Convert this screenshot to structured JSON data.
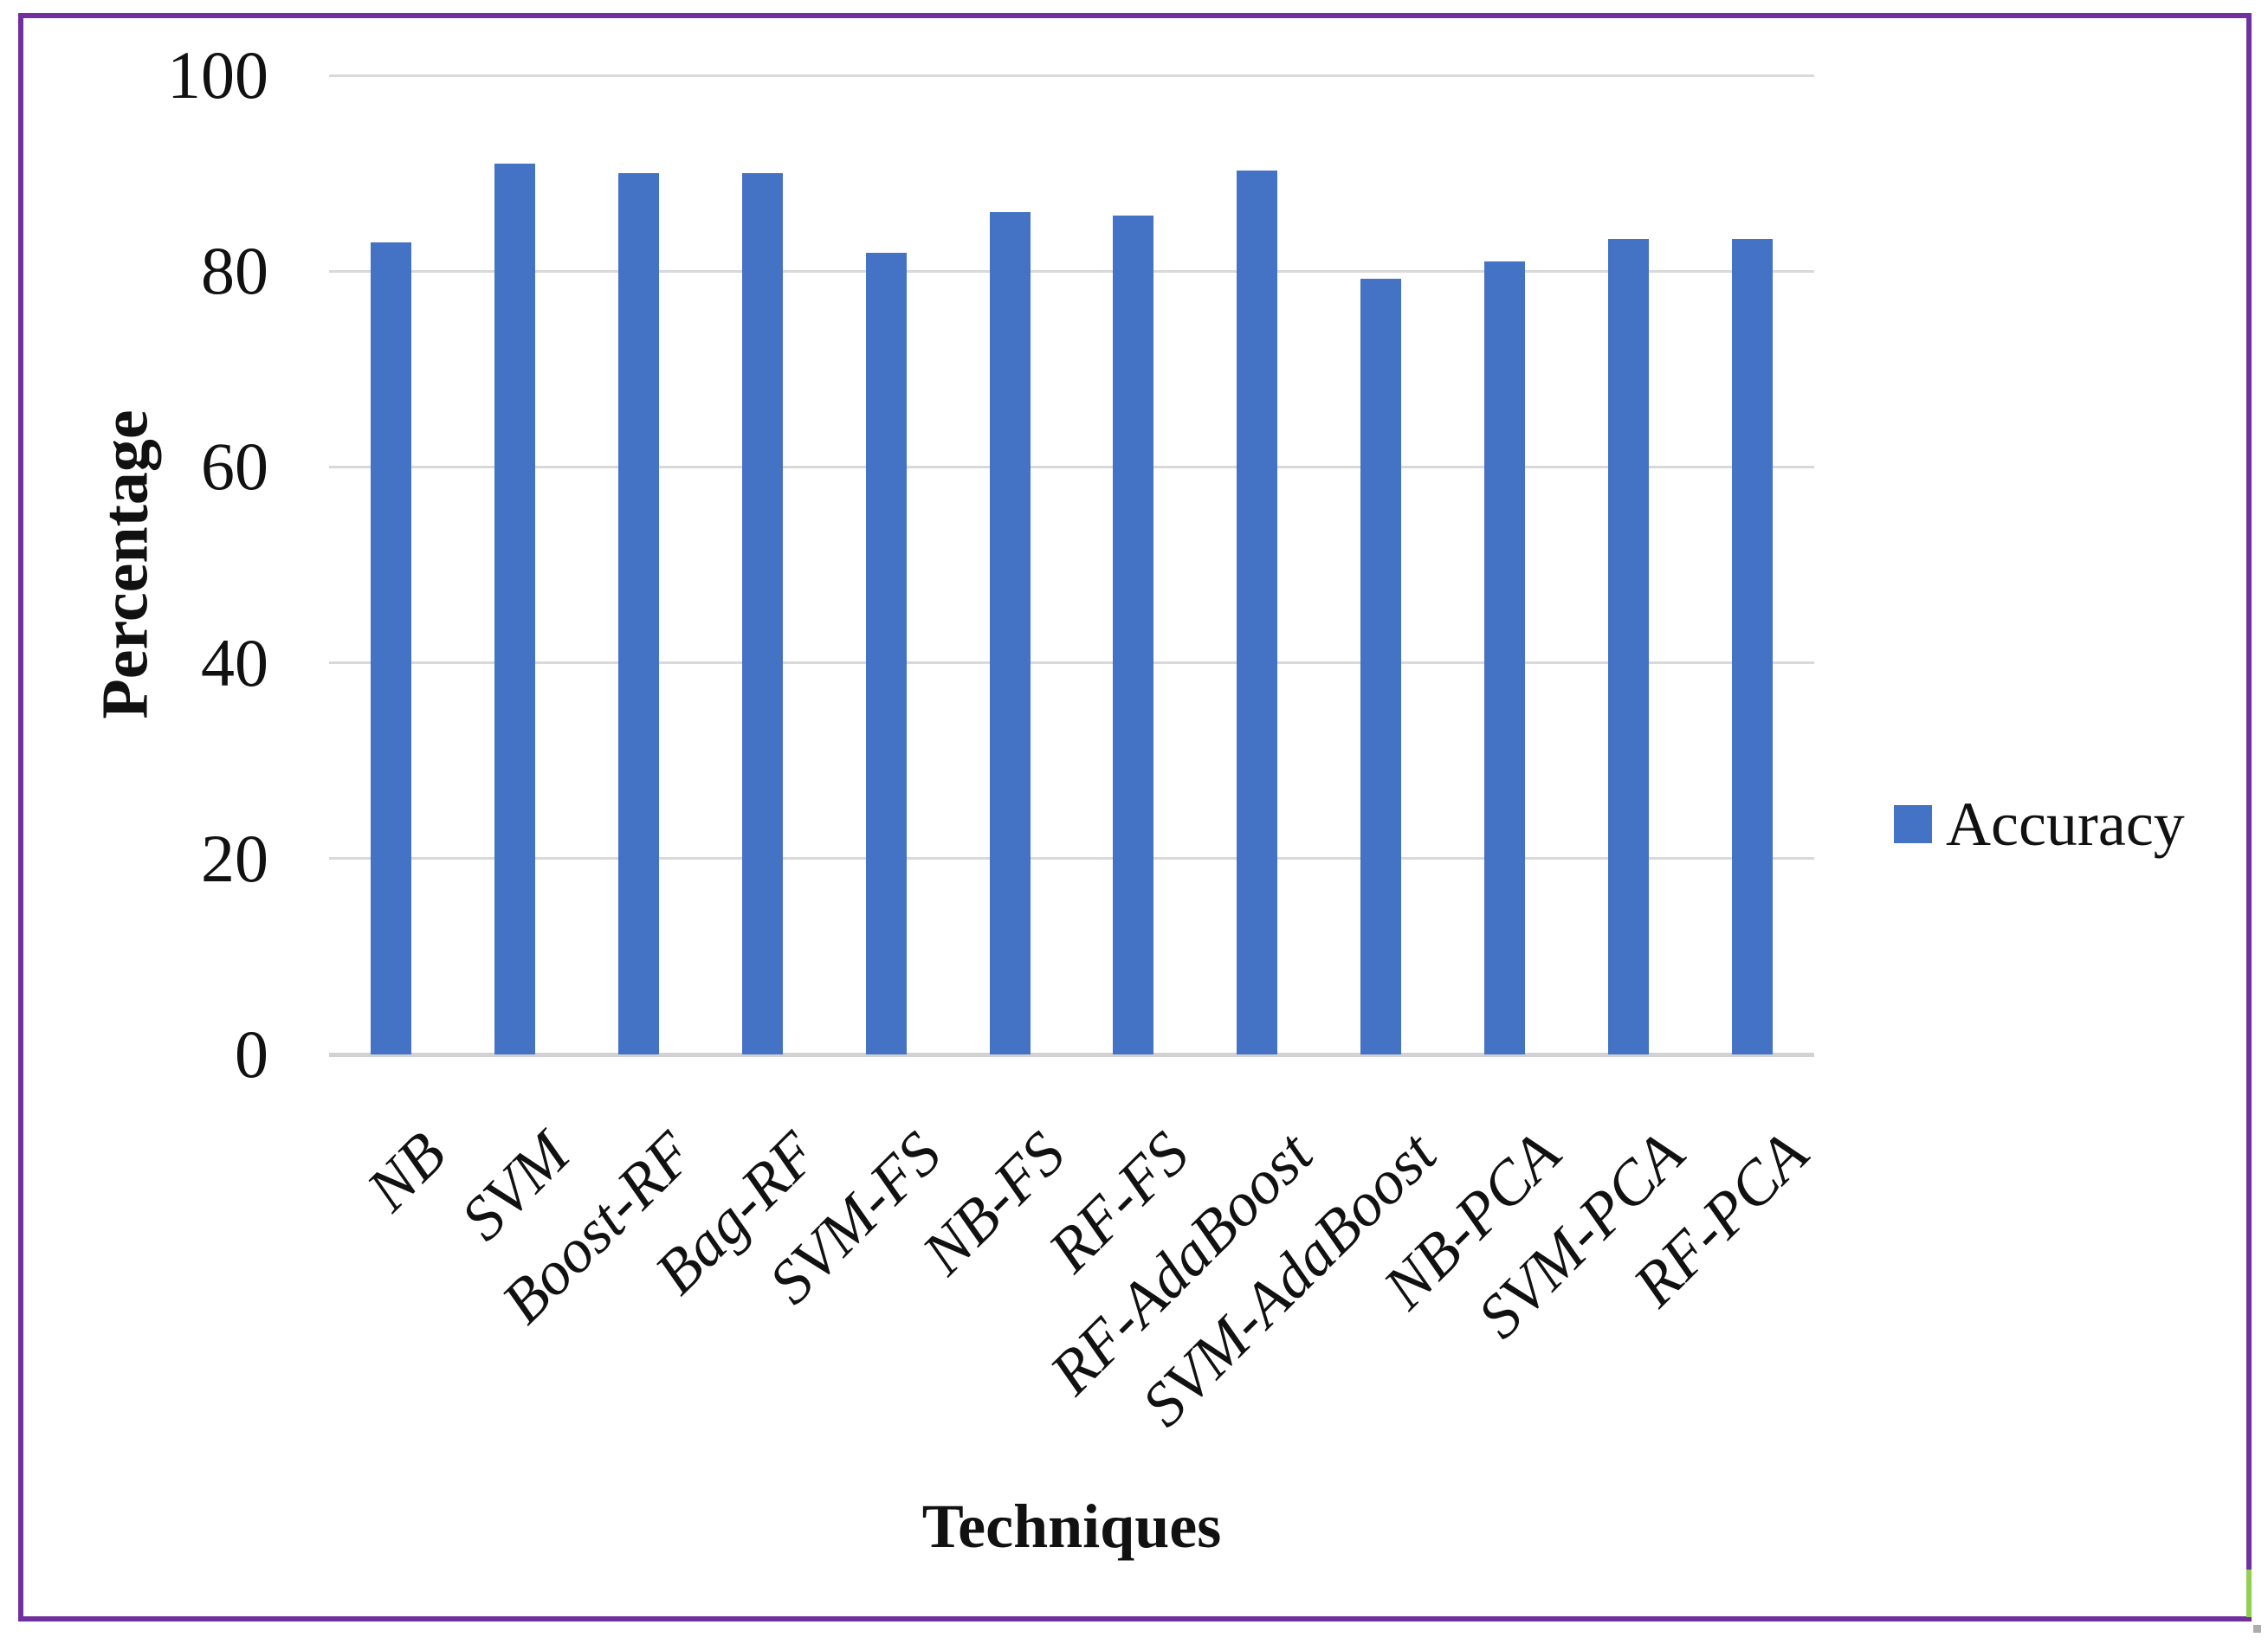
{
  "figure": {
    "background": "#FFFFFF",
    "border_color": "#7030A0",
    "border_accent_color": "#92D050",
    "corner_dot_color": "#ACACAC"
  },
  "chart_data": {
    "type": "bar",
    "title": "",
    "xlabel": "Techniques",
    "ylabel": "Percentage",
    "ylim": [
      0,
      100
    ],
    "yticks": [
      0,
      20,
      40,
      60,
      80,
      100
    ],
    "grid": true,
    "gridline_color": "#D9D9D9",
    "axis_line_color": "#D2D2D2",
    "legend_position": "right",
    "categories": [
      "NB",
      "SVM",
      "Boost-RF",
      "Bag-RF",
      "SVM-FS",
      "NB-FS",
      "RF-FS",
      "RF-AdaBoost",
      "SVM-AdaBoost",
      "NB-PCA",
      "SVM-PCA",
      "RF-PCA"
    ],
    "series": [
      {
        "name": "Accuracy",
        "color": "#4472C4",
        "values": [
          82.9,
          91.0,
          90.0,
          90.0,
          81.9,
          86.0,
          85.7,
          90.3,
          79.2,
          81.0,
          83.3,
          83.3
        ]
      }
    ]
  }
}
